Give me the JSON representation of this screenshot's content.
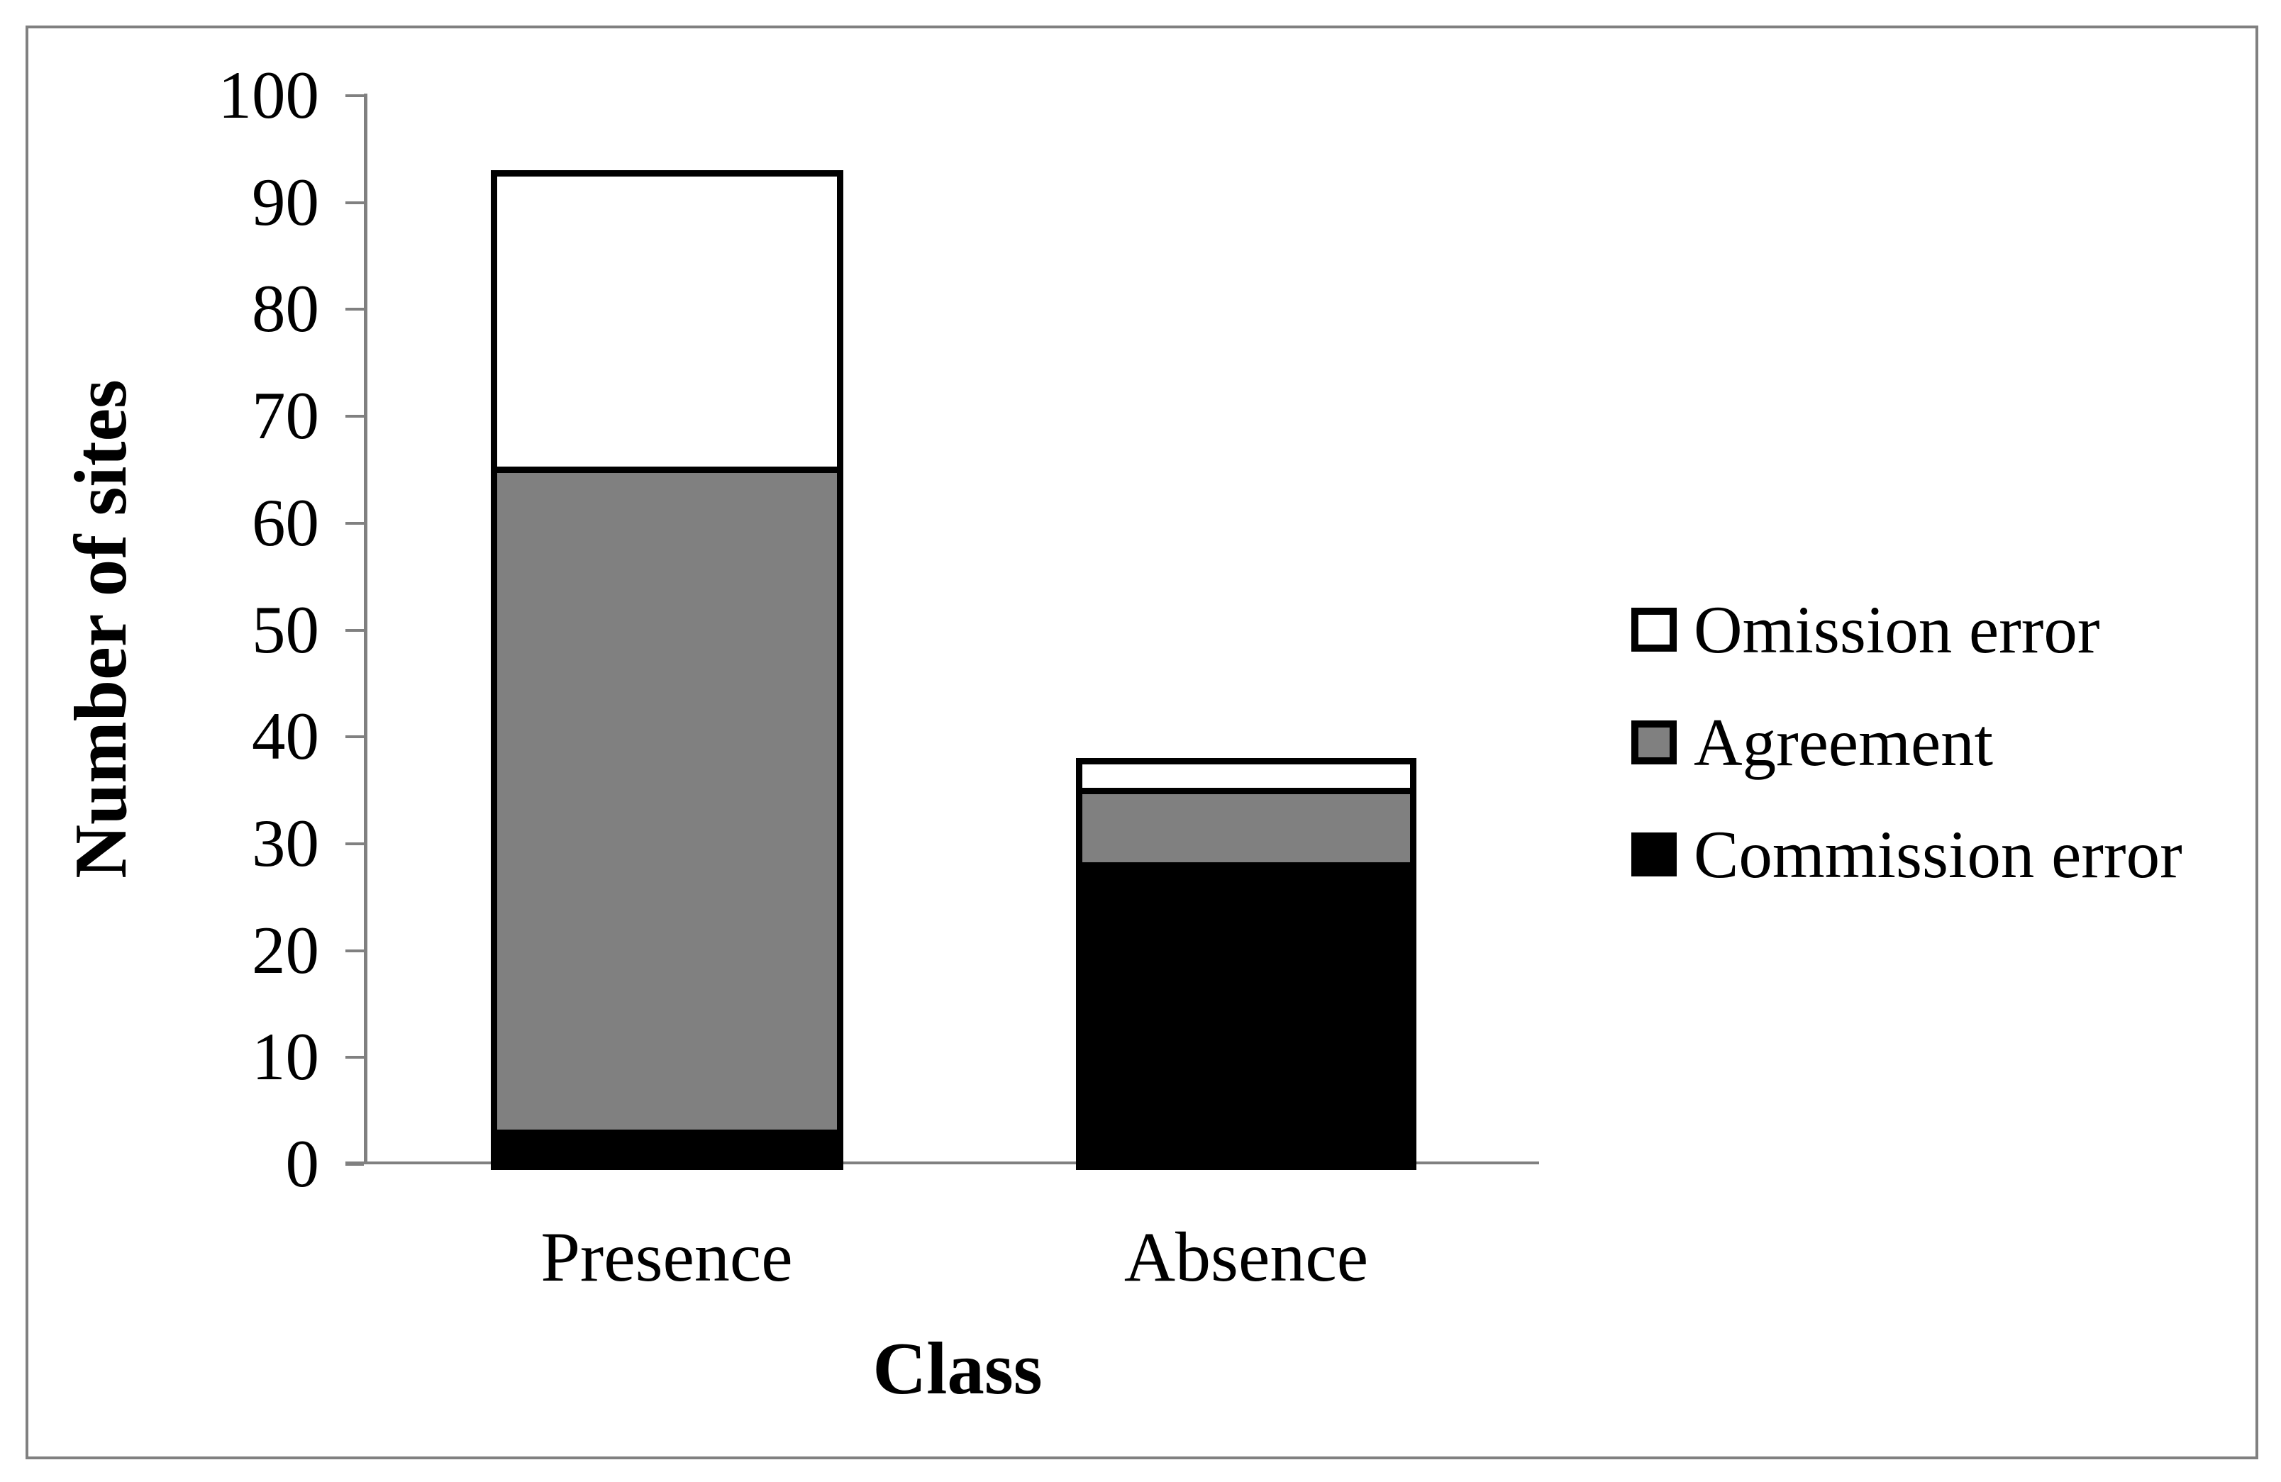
{
  "figure": {
    "background": "#ffffff",
    "border_color": "#808080"
  },
  "chart_data": {
    "type": "bar",
    "stacked": true,
    "title": "",
    "xlabel": "Class",
    "ylabel": "Number of sites",
    "categories": [
      "Presence",
      "Absence"
    ],
    "series": [
      {
        "name": "Omission error",
        "color": "#ffffff",
        "values": [
          28,
          3
        ]
      },
      {
        "name": "Agreement",
        "color": "#808080",
        "values": [
          62,
          7
        ]
      },
      {
        "name": "Commission error",
        "color": "#000000",
        "values": [
          3,
          28
        ]
      }
    ],
    "totals": [
      93,
      38
    ],
    "ylim": [
      0,
      100
    ],
    "yticks": [
      0,
      10,
      20,
      30,
      40,
      50,
      60,
      70,
      80,
      90,
      100
    ],
    "grid": false,
    "legend_position": "right-middle",
    "axis_color": "#808080",
    "bar_border_color": "#000000"
  }
}
